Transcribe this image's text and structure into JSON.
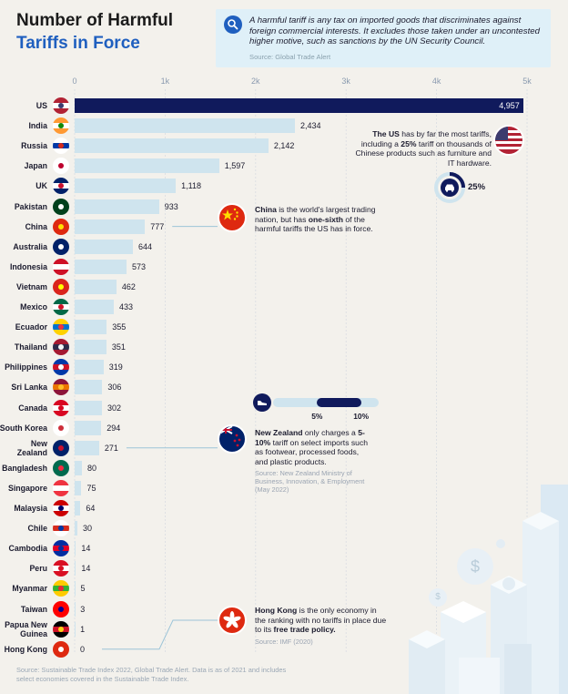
{
  "title": {
    "line1": "Number of Harmful",
    "line2": "Tariffs in Force"
  },
  "definition": {
    "text": "A harmful tariff is any tax on imported goods that discriminates against foreign commercial interests. It excludes those taken under an uncontested higher motive, such as sanctions by the UN Security Council.",
    "source": "Source: Global Trade Alert",
    "icon": "search-icon"
  },
  "chart_data": {
    "type": "bar",
    "orientation": "horizontal",
    "title": "Number of Harmful Tariffs in Force",
    "xlim": [
      0,
      5000
    ],
    "x_ticks": [
      "0",
      "1k",
      "2k",
      "3k",
      "4k",
      "5k"
    ],
    "tick_values": [
      0,
      1000,
      2000,
      3000,
      4000,
      5000
    ],
    "categories": [
      "US",
      "India",
      "Russia",
      "Japan",
      "UK",
      "Pakistan",
      "China",
      "Australia",
      "Indonesia",
      "Vietnam",
      "Mexico",
      "Ecuador",
      "Thailand",
      "Philippines",
      "Sri Lanka",
      "Canada",
      "South Korea",
      "New Zealand",
      "Bangladesh",
      "Singapore",
      "Malaysia",
      "Chile",
      "Cambodia",
      "Peru",
      "Myanmar",
      "Taiwan",
      "Papua New Guinea",
      "Hong Kong"
    ],
    "label_lines": [
      [
        "US"
      ],
      [
        "India"
      ],
      [
        "Russia"
      ],
      [
        "Japan"
      ],
      [
        "UK"
      ],
      [
        "Pakistan"
      ],
      [
        "China"
      ],
      [
        "Australia"
      ],
      [
        "Indonesia"
      ],
      [
        "Vietnam"
      ],
      [
        "Mexico"
      ],
      [
        "Ecuador"
      ],
      [
        "Thailand"
      ],
      [
        "Philippines"
      ],
      [
        "Sri Lanka"
      ],
      [
        "Canada"
      ],
      [
        "South Korea"
      ],
      [
        "New",
        "Zealand"
      ],
      [
        "Bangladesh"
      ],
      [
        "Singapore"
      ],
      [
        "Malaysia"
      ],
      [
        "Chile"
      ],
      [
        "Cambodia"
      ],
      [
        "Peru"
      ],
      [
        "Myanmar"
      ],
      [
        "Taiwan"
      ],
      [
        "Papua New",
        "Guinea"
      ],
      [
        "Hong Kong"
      ]
    ],
    "values": [
      4957,
      2434,
      2142,
      1597,
      1118,
      933,
      777,
      644,
      573,
      462,
      433,
      355,
      351,
      319,
      306,
      302,
      294,
      271,
      80,
      75,
      64,
      30,
      14,
      14,
      5,
      3,
      1,
      0
    ],
    "value_labels": [
      "4,957",
      "2,434",
      "2,142",
      "1,597",
      "1,118",
      "933",
      "777",
      "644",
      "573",
      "462",
      "433",
      "355",
      "351",
      "319",
      "306",
      "302",
      "294",
      "271",
      "80",
      "75",
      "64",
      "30",
      "14",
      "14",
      "5",
      "3",
      "1",
      "0"
    ],
    "highlight_color": "#101a5c",
    "bar_color": "#cfe4ee"
  },
  "annotations": {
    "us": {
      "bold1": "The US",
      "t1": " has by far the most tariffs, including a ",
      "bold2": "25%",
      "t2": " tariff on thousands of Chinese products such as furniture and IT hardware.",
      "gauge_label": "25%",
      "gauge_value": 0.25,
      "icon": "car-icon"
    },
    "china": {
      "bold1": "China",
      "t1": " is the world's largest trading nation, but has ",
      "bold2": "one-sixth",
      "t2": " of the harmful tariffs the US has in force."
    },
    "nz": {
      "bold1": "New Zealand",
      "t1": " only charges a ",
      "bold2": "5-10%",
      "t2": " tariff on select imports such as footwear, processed foods, and plastic products.",
      "source": "Source: New Zealand Ministry of Business, Innovation, & Employment (May 2022)",
      "range_low_label": "5%",
      "range_high_label": "10%",
      "range_low": 0.05,
      "range_high": 0.1,
      "icon": "shoe-icon"
    },
    "hk": {
      "bold1": "Hong Kong",
      "t1": " is the only economy in the ranking with no tariffs in place due to its ",
      "bold2": "free trade policy.",
      "t2": "",
      "source": "Source: IMF (2020)"
    }
  },
  "footer": "Source: Sustainable Trade Index 2022, Global Trade Alert. Data is as of 2021 and includes select economies covered in the Sustainable Trade Index.",
  "decor": {
    "dollar_symbol": "$"
  }
}
